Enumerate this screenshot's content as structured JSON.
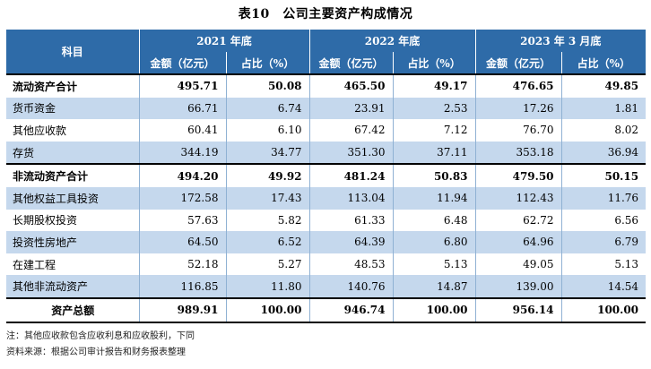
{
  "title": "表10　公司主要资产构成情况",
  "header": {
    "subject": "科目",
    "periods": [
      "2021 年底",
      "2022 年底",
      "2023 年 3 月底"
    ],
    "amount_label": "金额（亿元）",
    "share_label": "占比（%）"
  },
  "rows": [
    {
      "name": "流动资产合计",
      "v": [
        "495.71",
        "50.08",
        "465.50",
        "49.17",
        "476.65",
        "49.85"
      ]
    },
    {
      "name": "货币资金",
      "v": [
        "66.71",
        "6.74",
        "23.91",
        "2.53",
        "17.26",
        "1.81"
      ]
    },
    {
      "name": "其他应收款",
      "v": [
        "60.41",
        "6.10",
        "67.42",
        "7.12",
        "76.70",
        "8.02"
      ]
    },
    {
      "name": "存货",
      "v": [
        "344.19",
        "34.77",
        "351.30",
        "37.11",
        "353.18",
        "36.94"
      ]
    },
    {
      "name": "非流动资产合计",
      "v": [
        "494.20",
        "49.92",
        "481.24",
        "50.83",
        "479.50",
        "50.15"
      ]
    },
    {
      "name": "其他权益工具投资",
      "v": [
        "172.58",
        "17.43",
        "113.04",
        "11.94",
        "112.43",
        "11.76"
      ]
    },
    {
      "name": "长期股权投资",
      "v": [
        "57.63",
        "5.82",
        "61.33",
        "6.48",
        "62.72",
        "6.56"
      ]
    },
    {
      "name": "投资性房地产",
      "v": [
        "64.50",
        "6.52",
        "64.39",
        "6.80",
        "64.96",
        "6.79"
      ]
    },
    {
      "name": "在建工程",
      "v": [
        "52.18",
        "5.27",
        "48.53",
        "5.13",
        "49.05",
        "5.13"
      ]
    },
    {
      "name": "其他非流动资产",
      "v": [
        "116.85",
        "11.80",
        "140.76",
        "14.87",
        "139.00",
        "14.54"
      ]
    },
    {
      "name": "资产总额",
      "v": [
        "989.91",
        "100.00",
        "946.74",
        "100.00",
        "956.14",
        "100.00"
      ]
    }
  ],
  "notes": {
    "note1": "注：其他应收款包含应收利息和应收股利，下同",
    "note2": "资料来源：根据公司审计报告和财务报表整理"
  },
  "colors": {
    "header_bg": "#2e6ba8",
    "row_shade": "#c5d8ed"
  }
}
